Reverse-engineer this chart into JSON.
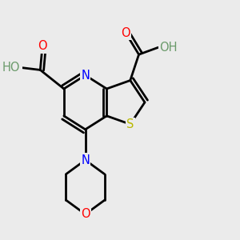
{
  "bg_color": "#ebebeb",
  "atom_colors": {
    "C": "#000000",
    "N": "#0000ff",
    "O": "#ff0000",
    "S": "#b8b800",
    "H": "#6a9a6a"
  },
  "bond_color": "#000000",
  "bond_width": 2.0,
  "fig_width": 3.0,
  "fig_height": 3.0,
  "dpi": 100
}
